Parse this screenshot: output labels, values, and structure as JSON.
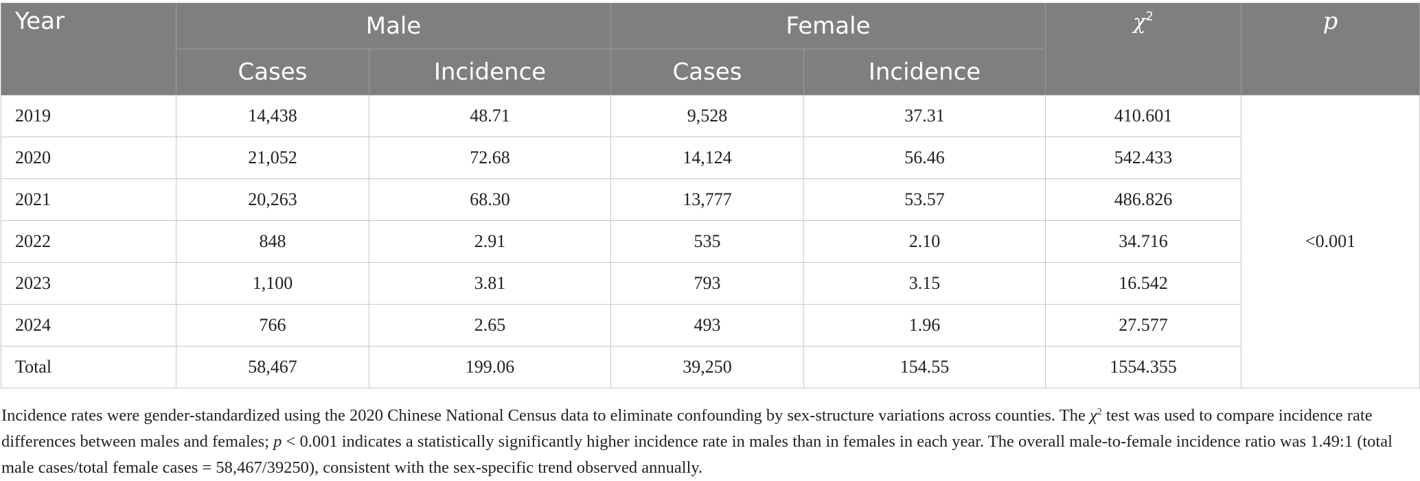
{
  "table": {
    "header": {
      "year": "Year",
      "male": "Male",
      "female": "Female",
      "chi_symbol": "χ",
      "chi_sup": "2",
      "p": "p",
      "cases": "Cases",
      "incidence": "Incidence"
    },
    "rows": [
      {
        "year": "2019",
        "male_cases": "14,438",
        "male_incidence": "48.71",
        "female_cases": "9,528",
        "female_incidence": "37.31",
        "chi2": "410.601"
      },
      {
        "year": "2020",
        "male_cases": "21,052",
        "male_incidence": "72.68",
        "female_cases": "14,124",
        "female_incidence": "56.46",
        "chi2": "542.433"
      },
      {
        "year": "2021",
        "male_cases": "20,263",
        "male_incidence": "68.30",
        "female_cases": "13,777",
        "female_incidence": "53.57",
        "chi2": "486.826"
      },
      {
        "year": "2022",
        "male_cases": "848",
        "male_incidence": "2.91",
        "female_cases": "535",
        "female_incidence": "2.10",
        "chi2": "34.716"
      },
      {
        "year": "2023",
        "male_cases": "1,100",
        "male_incidence": "3.81",
        "female_cases": "793",
        "female_incidence": "3.15",
        "chi2": "16.542"
      },
      {
        "year": "2024",
        "male_cases": "766",
        "male_incidence": "2.65",
        "female_cases": "493",
        "female_incidence": "1.96",
        "chi2": "27.577"
      },
      {
        "year": "Total",
        "male_cases": "58,467",
        "male_incidence": "199.06",
        "female_cases": "39,250",
        "female_incidence": "154.55",
        "chi2": "1554.355"
      }
    ],
    "p_value": "<0.001"
  },
  "footnote": {
    "part1": "Incidence rates were gender-standardized using the 2020 Chinese National Census data to eliminate confounding by sex-structure variations across counties. The ",
    "chi": "χ",
    "chi_sup": "2",
    "part2": " test was used to compare incidence rate differences between males and females; ",
    "p": "p",
    "part3": " < 0.001 indicates a statistically significantly higher incidence rate in males than in females in each year. The overall male-to-female incidence ratio was 1.49:1 (total male cases/total female cases = 58,467/39250), consistent with the sex-specific trend observed annually."
  }
}
